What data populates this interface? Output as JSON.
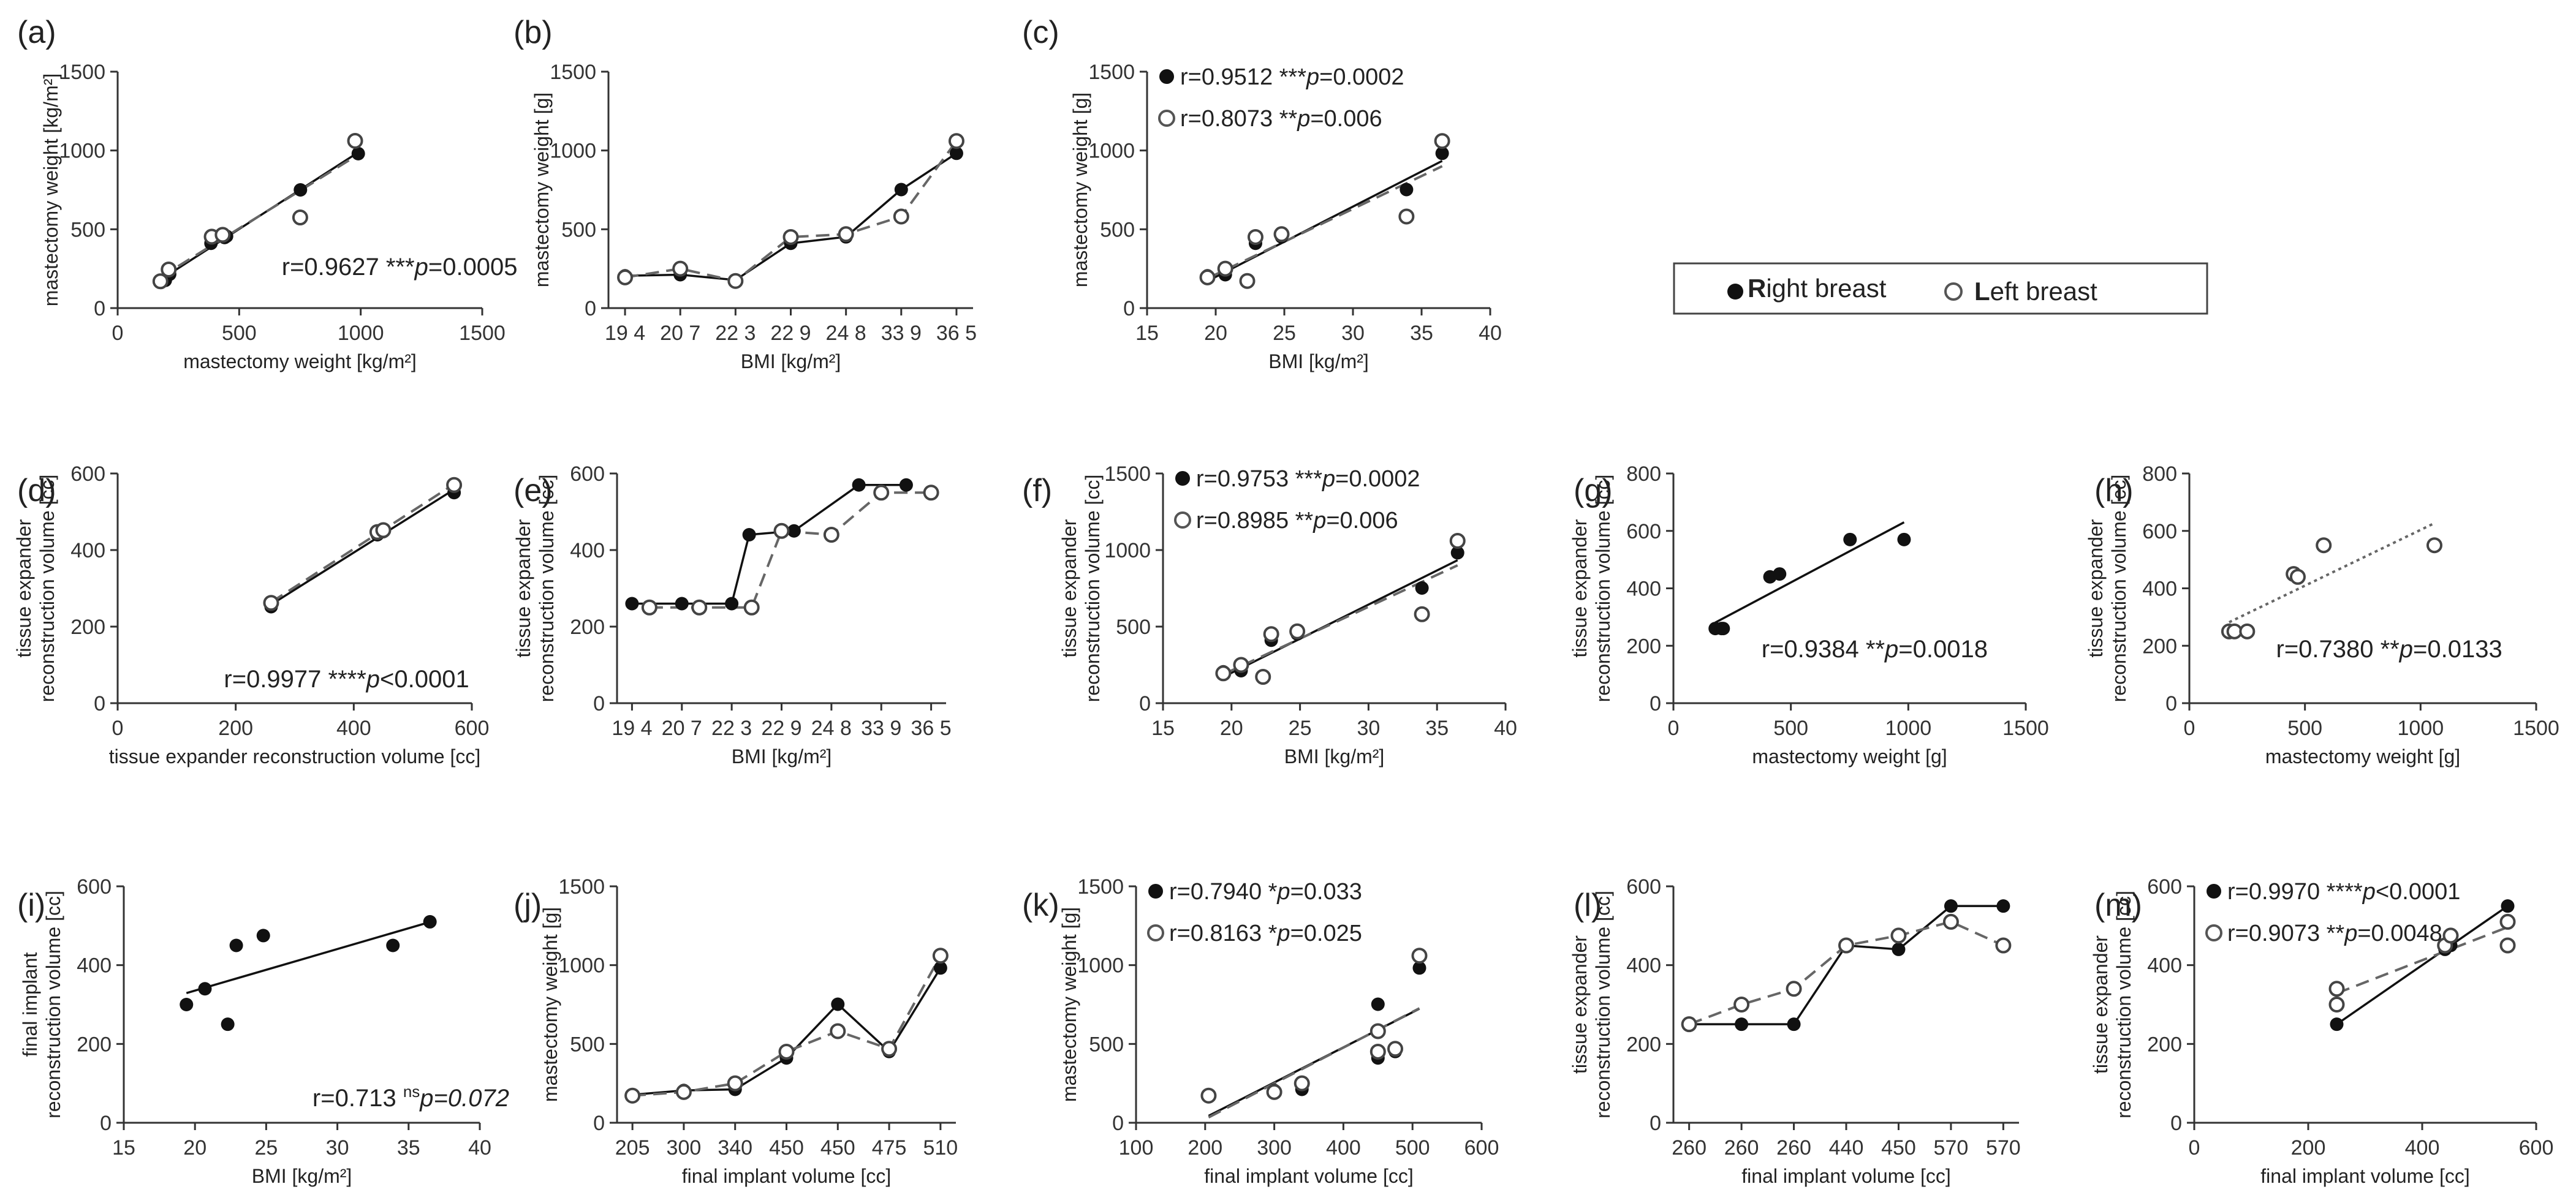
{
  "legend": {
    "right_bold": "R",
    "right_rest": "ight breast",
    "left_bold": "L",
    "left_rest": "eft breast"
  },
  "chart_data": [
    {
      "id": "a",
      "label": "(a)",
      "type": "scatter",
      "xlabel": "mastectomy weight [kg/m²]",
      "ylabel": "mastectomy weight [kg/m²]",
      "xlim": [
        0,
        1500
      ],
      "ylim": [
        0,
        1500
      ],
      "xticks": [
        0,
        500,
        1000,
        1500
      ],
      "yticks": [
        0,
        500,
        1000,
        1500
      ],
      "series": [
        {
          "name": "Right breast",
          "marker": "filled",
          "line": "fit-solid",
          "x": [
            196,
            214,
            384,
            440,
            448,
            752,
            990
          ],
          "y": [
            176,
            215,
            411,
            448,
            456,
            750,
            980
          ]
        },
        {
          "name": "Left breast",
          "marker": "open",
          "line": "fit-dashed",
          "x": [
            176,
            210,
            387,
            432,
            751,
            977
          ],
          "y": [
            170,
            245,
            453,
            465,
            575,
            1061
          ]
        }
      ],
      "annotations": [
        {
          "text": "r=0.9627 ***",
          "italic": "p",
          "tail": "=0.0005",
          "ax": 0.45,
          "ay": 0.14
        }
      ]
    },
    {
      "id": "b",
      "label": "(b)",
      "type": "line",
      "xlabel": "BMI [kg/m²]",
      "ylabel": "mastectomy weight [g]",
      "categories": [
        "19 4",
        "20 7",
        "22 3",
        "22 9",
        "24 8",
        "33 9",
        "36 5"
      ],
      "ylim": [
        0,
        1500
      ],
      "yticks": [
        0,
        500,
        1000,
        1500
      ],
      "series": [
        {
          "name": "Right breast",
          "marker": "filled",
          "line": "solid",
          "values": [
            205,
            212,
            178,
            411,
            452,
            752,
            982
          ]
        },
        {
          "name": "Left breast",
          "marker": "open",
          "line": "dashed",
          "values": [
            195,
            250,
            172,
            451,
            469,
            581,
            1060
          ]
        }
      ]
    },
    {
      "id": "c",
      "label": "(c)",
      "type": "scatter",
      "xlabel": "BMI [kg/m²]",
      "ylabel": "mastectomy weight [g]",
      "xlim": [
        15,
        40
      ],
      "ylim": [
        0,
        1500
      ],
      "xticks": [
        15,
        20,
        25,
        30,
        35,
        40
      ],
      "yticks": [
        0,
        500,
        1000,
        1500
      ],
      "series": [
        {
          "name": "Right breast",
          "marker": "filled",
          "line": "fit-solid",
          "x": [
            19.4,
            20.7,
            22.3,
            22.9,
            24.8,
            33.9,
            36.5
          ],
          "y": [
            205,
            212,
            178,
            411,
            452,
            752,
            982
          ]
        },
        {
          "name": "Left breast",
          "marker": "open",
          "line": "fit-dashed",
          "x": [
            19.4,
            20.7,
            22.3,
            22.9,
            24.8,
            33.9,
            36.5
          ],
          "y": [
            195,
            250,
            172,
            451,
            469,
            581,
            1060
          ]
        }
      ],
      "legend_entries": [
        {
          "marker": "filled",
          "text": "r=0.9512 ***",
          "italic": "p",
          "tail": "=0.0002"
        },
        {
          "marker": "open",
          "text": "r=0.8073 **",
          "italic": "p",
          "tail": "=0.006"
        }
      ]
    },
    {
      "id": "d",
      "label": "(d)",
      "type": "scatter",
      "xlabel": "tissue expander reconstruction volume [cc]",
      "ylabel": [
        "tissue expander",
        "reconstruction volume [cc]"
      ],
      "xlim": [
        0,
        600
      ],
      "ylim": [
        0,
        600
      ],
      "xticks": [
        0,
        200,
        400,
        600
      ],
      "yticks": [
        0,
        200,
        400,
        600
      ],
      "series": [
        {
          "name": "Right breast",
          "marker": "filled",
          "line": "fit-solid",
          "x": [
            260,
            440,
            450,
            570
          ],
          "y": [
            252,
            440,
            448,
            550
          ]
        },
        {
          "name": "Left breast",
          "marker": "open",
          "line": "fit-dashed",
          "x": [
            260,
            440,
            450,
            570
          ],
          "y": [
            262,
            447,
            452,
            570
          ]
        }
      ],
      "annotations": [
        {
          "text": "r=0.9977 ****",
          "italic": "p",
          "tail": "<0.0001",
          "ax": 0.3,
          "ay": 0.07
        }
      ]
    },
    {
      "id": "e",
      "label": "(e)",
      "type": "line",
      "xlabel": "BMI [kg/m²]",
      "ylabel": [
        "tissue expander",
        "reconstruction volume [cc]"
      ],
      "categories": [
        "19 4",
        "20 7",
        "22 3",
        "22 9",
        "24 8",
        "33 9",
        "36 5"
      ],
      "ylim": [
        0,
        600
      ],
      "yticks": [
        0,
        200,
        400,
        600
      ],
      "series": [
        {
          "name": "Right breast",
          "marker": "filled",
          "line": "solid",
          "x": [
            0,
            1,
            2,
            2.35,
            3.25,
            4.55,
            5.5
          ],
          "values": [
            260,
            260,
            260,
            440,
            450,
            570,
            570
          ]
        },
        {
          "name": "Left breast",
          "marker": "open",
          "line": "dashed",
          "x": [
            0.35,
            1.35,
            2.4,
            3.0,
            4.0,
            5.0,
            6.0
          ],
          "values": [
            250,
            250,
            250,
            450,
            440,
            550,
            550
          ]
        }
      ]
    },
    {
      "id": "f",
      "label": "(f)",
      "type": "scatter",
      "xlabel": "BMI [kg/m²]",
      "ylabel": [
        "tissue expander",
        "reconstruction volume [cc]"
      ],
      "xlim": [
        15,
        40
      ],
      "ylim": [
        0,
        1500
      ],
      "xticks": [
        15,
        20,
        25,
        30,
        35,
        40
      ],
      "yticks": [
        0,
        500,
        1000,
        1500
      ],
      "series": [
        {
          "name": "Right breast",
          "marker": "filled",
          "line": "fit-solid",
          "x": [
            19.4,
            20.7,
            22.3,
            22.9,
            24.8,
            33.9,
            36.5
          ],
          "y": [
            205,
            212,
            178,
            411,
            452,
            752,
            982
          ]
        },
        {
          "name": "Left breast",
          "marker": "open",
          "line": "fit-dashed",
          "x": [
            19.4,
            20.7,
            22.3,
            22.9,
            24.8,
            33.9,
            36.5
          ],
          "y": [
            195,
            250,
            172,
            451,
            469,
            581,
            1060
          ]
        }
      ],
      "legend_entries": [
        {
          "marker": "filled",
          "text": "r=0.9753 ***",
          "italic": "p",
          "tail": "=0.0002"
        },
        {
          "marker": "open",
          "text": "r=0.8985 **",
          "italic": "p",
          "tail": "=0.006"
        }
      ]
    },
    {
      "id": "g",
      "label": "(g)",
      "type": "scatter",
      "xlabel": "mastectomy weight [g]",
      "ylabel": [
        "tissue expander",
        "reconstruction volume [cc]"
      ],
      "xlim": [
        0,
        1500
      ],
      "ylim": [
        0,
        800
      ],
      "xticks": [
        0,
        500,
        1000,
        1500
      ],
      "yticks": [
        0,
        200,
        400,
        600,
        800
      ],
      "series": [
        {
          "name": "Right breast",
          "marker": "filled",
          "line": "fit-solid",
          "x": [
            178,
            205,
            212,
            411,
            452,
            752,
            982
          ],
          "y": [
            260,
            260,
            260,
            440,
            450,
            570,
            570
          ]
        }
      ],
      "annotations": [
        {
          "text": "r=0.9384 **",
          "italic": "p",
          "tail": "=0.0018",
          "ax": 0.25,
          "ay": 0.2
        }
      ]
    },
    {
      "id": "h",
      "label": "(h)",
      "type": "scatter",
      "xlabel": "mastectomy weight [g]",
      "ylabel": [
        "tissue expander",
        "reconstruction volume [cc]"
      ],
      "xlim": [
        0,
        1500
      ],
      "ylim": [
        0,
        800
      ],
      "xticks": [
        0,
        500,
        1000,
        1500
      ],
      "yticks": [
        0,
        200,
        400,
        600,
        800
      ],
      "series": [
        {
          "name": "Left breast",
          "marker": "open",
          "line": "fit-dotted",
          "x": [
            172,
            195,
            250,
            451,
            469,
            581,
            1060
          ],
          "y": [
            250,
            250,
            250,
            450,
            440,
            550,
            550
          ]
        }
      ],
      "annotations": [
        {
          "text": "r=0.7380 **",
          "italic": "p",
          "tail": "=0.0133",
          "ax": 0.25,
          "ay": 0.2
        }
      ]
    },
    {
      "id": "i",
      "label": "(i)",
      "type": "scatter",
      "xlabel": "BMI [kg/m²]",
      "ylabel": [
        "final implant",
        "reconstruction volume [cc]"
      ],
      "xlim": [
        15,
        40
      ],
      "ylim": [
        0,
        600
      ],
      "xticks": [
        15,
        20,
        25,
        30,
        35,
        40
      ],
      "yticks": [
        0,
        200,
        400,
        600
      ],
      "series": [
        {
          "name": "Right breast",
          "marker": "filled",
          "line": "fit-solid",
          "x": [
            19.4,
            20.7,
            22.3,
            22.9,
            24.8,
            33.9,
            36.5
          ],
          "y": [
            300,
            340,
            250,
            450,
            475,
            450,
            510
          ]
        }
      ],
      "annotations": [
        {
          "text": "r=0.713 ",
          "sup": "ns",
          "italic": "p",
          "tail": "=0.072",
          "tail_italic": true,
          "ax": 0.53,
          "ay": 0.07
        }
      ]
    },
    {
      "id": "j",
      "label": "(j)",
      "type": "line",
      "xlabel": "final implant volume [cc]",
      "ylabel": "mastectomy weight [g]",
      "categories": [
        "205",
        "300",
        "340",
        "450",
        "450",
        "475",
        "510"
      ],
      "ylim": [
        0,
        1500
      ],
      "yticks": [
        0,
        500,
        1000,
        1500
      ],
      "series": [
        {
          "name": "Right breast",
          "marker": "filled",
          "line": "solid",
          "values": [
            178,
            205,
            212,
            411,
            752,
            452,
            982
          ]
        },
        {
          "name": "Left breast",
          "marker": "open",
          "line": "dashed",
          "values": [
            172,
            195,
            250,
            451,
            581,
            469,
            1060
          ]
        }
      ]
    },
    {
      "id": "k",
      "label": "(k)",
      "type": "scatter",
      "xlabel": "final implant volume [cc]",
      "ylabel": "mastectomy weight [g]",
      "xlim": [
        100,
        600
      ],
      "ylim": [
        0,
        1500
      ],
      "xticks": [
        100,
        200,
        300,
        400,
        500,
        600
      ],
      "yticks": [
        0,
        500,
        1000,
        1500
      ],
      "series": [
        {
          "name": "Right breast",
          "marker": "filled",
          "line": "fit-solid",
          "x": [
            205,
            300,
            340,
            450,
            450,
            475,
            510
          ],
          "y": [
            178,
            205,
            212,
            411,
            752,
            452,
            982
          ]
        },
        {
          "name": "Left breast",
          "marker": "open",
          "line": "fit-dashed",
          "x": [
            205,
            300,
            340,
            450,
            450,
            475,
            510
          ],
          "y": [
            172,
            195,
            250,
            451,
            581,
            469,
            1060
          ]
        }
      ],
      "legend_entries": [
        {
          "marker": "filled",
          "text": "r=0.7940 *",
          "italic": "p",
          "tail": "=0.033"
        },
        {
          "marker": "open",
          "text": "r=0.8163 *",
          "italic": "p",
          "tail": "=0.025"
        }
      ]
    },
    {
      "id": "l",
      "label": "(l)",
      "type": "line",
      "xlabel": "final implant volume [cc]",
      "ylabel": [
        "tissue expander",
        "reconstruction volume [cc]"
      ],
      "categories": [
        "260",
        "260",
        "260",
        "440",
        "450",
        "570",
        "570"
      ],
      "ylim": [
        0,
        600
      ],
      "yticks": [
        0,
        200,
        400,
        600
      ],
      "series": [
        {
          "name": "Right breast",
          "marker": "filled",
          "line": "solid",
          "values": [
            250,
            250,
            250,
            450,
            440,
            550,
            550
          ]
        },
        {
          "name": "Left breast",
          "marker": "open",
          "line": "dashed",
          "values": [
            250,
            300,
            340,
            450,
            475,
            510,
            450
          ]
        }
      ]
    },
    {
      "id": "m",
      "label": "(m)",
      "type": "scatter",
      "xlabel": "final implant volume [cc]",
      "ylabel": [
        "tissue expander",
        "reconstruction volume [cc]"
      ],
      "xlim": [
        0,
        600
      ],
      "ylim": [
        0,
        600
      ],
      "xticks": [
        0,
        200,
        400,
        600
      ],
      "yticks": [
        0,
        200,
        400,
        600
      ],
      "series": [
        {
          "name": "Right breast",
          "marker": "filled",
          "line": "fit-solid",
          "x": [
            250,
            440,
            450,
            550
          ],
          "y": [
            250,
            440,
            450,
            550
          ]
        },
        {
          "name": "Left breast",
          "marker": "open",
          "line": "fit-dashed",
          "x": [
            250,
            250,
            440,
            450,
            550,
            550
          ],
          "y": [
            300,
            340,
            450,
            475,
            510,
            450
          ]
        }
      ],
      "legend_entries": [
        {
          "marker": "filled",
          "text": "r=0.9970 ****",
          "italic": "p",
          "tail": "<0.0001"
        },
        {
          "marker": "open",
          "text": "r=0.9073 **",
          "italic": "p",
          "tail": "=0.0048"
        }
      ]
    }
  ]
}
